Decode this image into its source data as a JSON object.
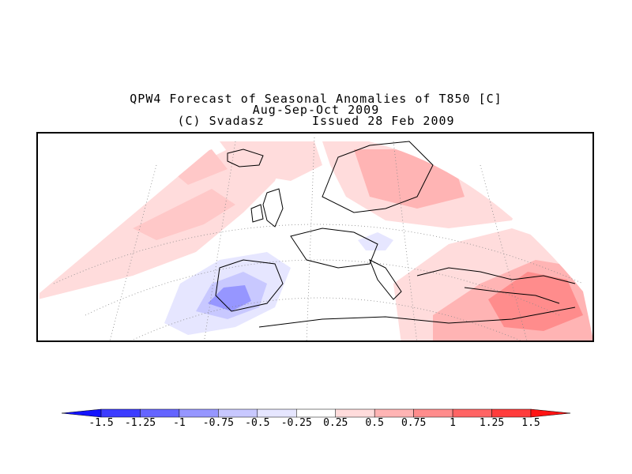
{
  "title": {
    "line1": "QPW4 Forecast of Seasonal Anomalies of T850 [C]",
    "line2": "Aug-Sep-Oct 2009",
    "line3": "(C) Svadasz      Issued 28 Feb 2009"
  },
  "map": {
    "variable": "T850 seasonal temperature anomaly",
    "units": "C",
    "projection": "conic",
    "region": "Europe / North Atlantic / Mediterranean",
    "anomaly_regions": [
      {
        "name": "iberia-cold",
        "level": -0.75
      },
      {
        "name": "west-med-cool",
        "level": -0.5
      },
      {
        "name": "alps-cool",
        "level": -0.5
      },
      {
        "name": "scandinavia-warm",
        "level": 0.75
      },
      {
        "name": "east-med-warm",
        "level": 1.25
      },
      {
        "name": "north-atlantic-warm",
        "level": 0.5
      },
      {
        "name": "greenland-warm",
        "level": 0.5
      }
    ]
  },
  "colorbar": {
    "levels": [
      "-1.5",
      "-1.25",
      "-1",
      "-0.75",
      "-0.5",
      "-0.25",
      "0.25",
      "0.5",
      "0.75",
      "1",
      "1.25",
      "1.5"
    ],
    "colors": [
      "#1414ff",
      "#3c3cff",
      "#6464ff",
      "#9696ff",
      "#c8c8ff",
      "#e6e6ff",
      "#ffffff",
      "#ffdcdc",
      "#ffb4b4",
      "#ff8c8c",
      "#ff6464",
      "#ff3c3c",
      "#ff1414"
    ]
  }
}
